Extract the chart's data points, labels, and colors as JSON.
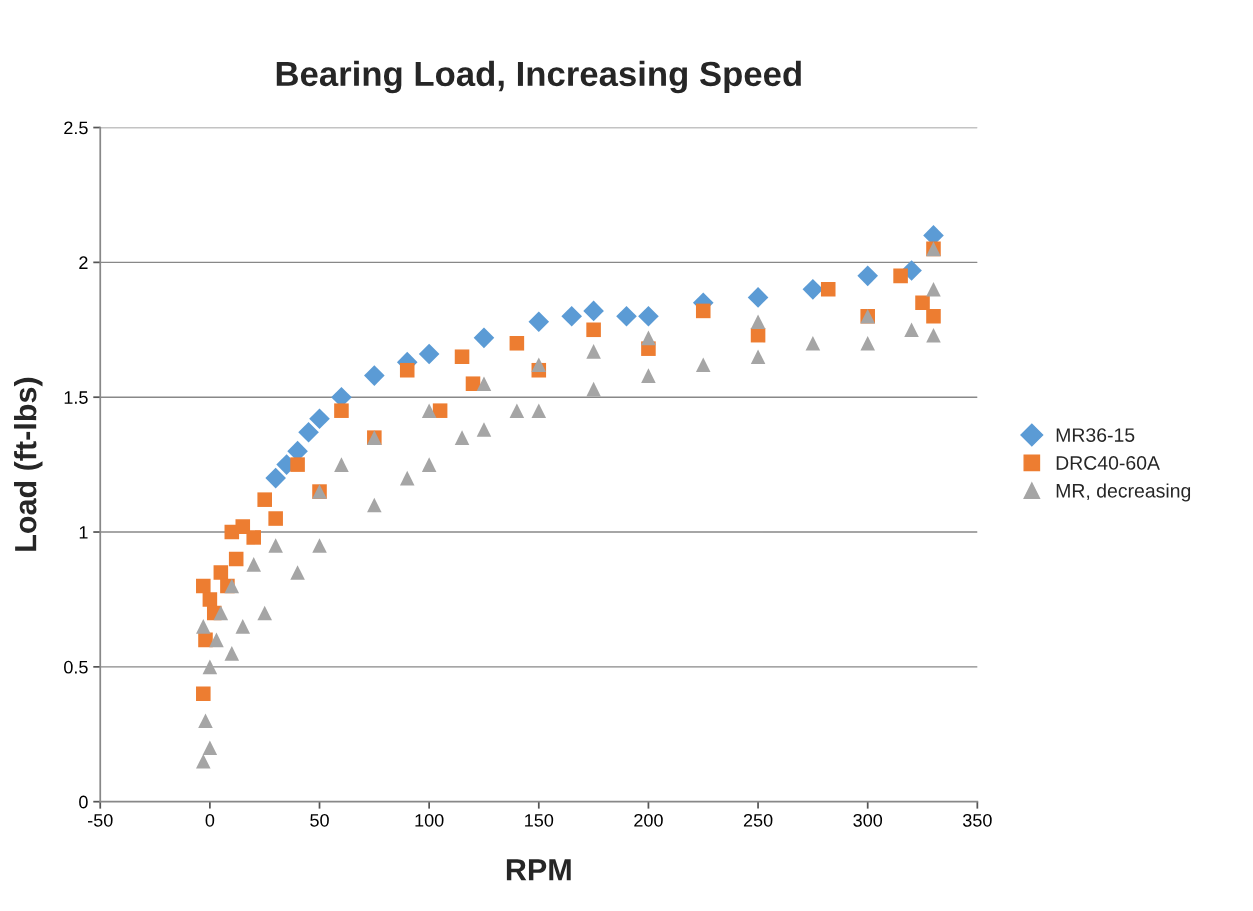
{
  "chart_data": {
    "type": "scatter",
    "title": "Bearing Load, Increasing Speed",
    "xlabel": "RPM",
    "ylabel": "Load (ft-lbs)",
    "xlim": [
      -50,
      350
    ],
    "xticks": [
      -50,
      0,
      50,
      100,
      150,
      200,
      250,
      300,
      350
    ],
    "ylim": [
      0,
      2.5
    ],
    "yticks": [
      0,
      0.5,
      1,
      1.5,
      2,
      2.5
    ],
    "grid": "y",
    "legend": "right",
    "series": [
      {
        "name": "MR36-15",
        "color": "#5b9bd5",
        "marker": "diamond",
        "x": [
          30,
          35,
          40,
          45,
          50,
          60,
          75,
          90,
          100,
          125,
          150,
          165,
          175,
          190,
          200,
          225,
          250,
          275,
          300,
          320,
          330
        ],
        "values": [
          1.2,
          1.25,
          1.3,
          1.37,
          1.42,
          1.5,
          1.58,
          1.63,
          1.66,
          1.72,
          1.78,
          1.8,
          1.82,
          1.8,
          1.8,
          1.85,
          1.87,
          1.9,
          1.95,
          1.97,
          2.1
        ]
      },
      {
        "name": "DRC40-60A",
        "color": "#ed7d31",
        "marker": "square",
        "x": [
          -3,
          -3,
          -2,
          0,
          2,
          5,
          8,
          10,
          12,
          15,
          20,
          25,
          30,
          40,
          50,
          60,
          75,
          90,
          105,
          115,
          120,
          140,
          150,
          175,
          200,
          225,
          250,
          282,
          300,
          315,
          325,
          330,
          330
        ],
        "values": [
          0.4,
          0.8,
          0.6,
          0.75,
          0.7,
          0.85,
          0.8,
          1.0,
          0.9,
          1.02,
          0.98,
          1.12,
          1.05,
          1.25,
          1.15,
          1.45,
          1.35,
          1.6,
          1.45,
          1.65,
          1.55,
          1.7,
          1.6,
          1.75,
          1.68,
          1.82,
          1.73,
          1.9,
          1.8,
          1.95,
          1.85,
          2.05,
          1.8
        ]
      },
      {
        "name": "MR, decreasing",
        "color": "#a5a5a5",
        "marker": "triangle",
        "x": [
          -3,
          -3,
          -2,
          0,
          0,
          3,
          5,
          10,
          10,
          15,
          20,
          25,
          30,
          40,
          50,
          50,
          60,
          75,
          75,
          90,
          100,
          100,
          115,
          125,
          125,
          140,
          150,
          150,
          175,
          175,
          200,
          200,
          225,
          250,
          250,
          275,
          300,
          300,
          320,
          330,
          330,
          330
        ],
        "values": [
          0.15,
          0.65,
          0.3,
          0.5,
          0.2,
          0.6,
          0.7,
          0.55,
          0.8,
          0.65,
          0.88,
          0.7,
          0.95,
          0.85,
          0.95,
          1.15,
          1.25,
          1.1,
          1.35,
          1.2,
          1.25,
          1.45,
          1.35,
          1.38,
          1.55,
          1.45,
          1.45,
          1.62,
          1.53,
          1.67,
          1.58,
          1.72,
          1.62,
          1.65,
          1.78,
          1.7,
          1.7,
          1.8,
          1.75,
          1.73,
          2.05,
          1.9
        ]
      }
    ]
  }
}
